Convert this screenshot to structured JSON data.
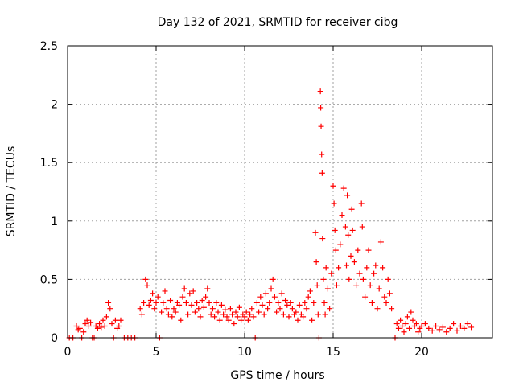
{
  "chart_data": {
    "type": "scatter",
    "title": "Day 132 of 2021, SRMTID for receiver cibg",
    "xlabel": "GPS time / hours",
    "ylabel": "SRMTID / TECUs",
    "xlim": [
      0,
      24
    ],
    "ylim": [
      0,
      2.5
    ],
    "xticks": [
      0,
      5,
      10,
      15,
      20
    ],
    "xtick_labels": [
      "0",
      "5",
      "10",
      "15",
      "20"
    ],
    "yticks": [
      0,
      0.5,
      1,
      1.5,
      2,
      2.5
    ],
    "ytick_labels": [
      "0",
      "0.5",
      "1",
      "1.5",
      "2",
      "2.5"
    ],
    "grid": true,
    "marker": "+",
    "series": [
      {
        "name": "SRMTID",
        "color": "#ff0000",
        "points": [
          [
            0.1,
            0.0
          ],
          [
            0.3,
            0.0
          ],
          [
            0.5,
            0.1
          ],
          [
            0.6,
            0.07
          ],
          [
            0.7,
            0.08
          ],
          [
            0.8,
            0.0
          ],
          [
            0.9,
            0.05
          ],
          [
            1.0,
            0.12
          ],
          [
            1.1,
            0.15
          ],
          [
            1.2,
            0.1
          ],
          [
            1.3,
            0.13
          ],
          [
            1.4,
            0.0
          ],
          [
            1.5,
            0.0
          ],
          [
            1.6,
            0.1
          ],
          [
            1.7,
            0.08
          ],
          [
            1.8,
            0.12
          ],
          [
            1.9,
            0.09
          ],
          [
            2.0,
            0.15
          ],
          [
            2.1,
            0.1
          ],
          [
            2.2,
            0.18
          ],
          [
            2.3,
            0.3
          ],
          [
            2.4,
            0.25
          ],
          [
            2.5,
            0.12
          ],
          [
            2.6,
            0.0
          ],
          [
            2.7,
            0.15
          ],
          [
            2.8,
            0.08
          ],
          [
            2.9,
            0.1
          ],
          [
            3.0,
            0.15
          ],
          [
            3.2,
            0.0
          ],
          [
            3.4,
            0.0
          ],
          [
            3.6,
            0.0
          ],
          [
            3.8,
            0.0
          ],
          [
            4.1,
            0.25
          ],
          [
            4.2,
            0.2
          ],
          [
            4.3,
            0.3
          ],
          [
            4.4,
            0.5
          ],
          [
            4.5,
            0.45
          ],
          [
            4.6,
            0.28
          ],
          [
            4.7,
            0.32
          ],
          [
            4.8,
            0.38
          ],
          [
            4.9,
            0.25
          ],
          [
            5.0,
            0.3
          ],
          [
            5.1,
            0.35
          ],
          [
            5.2,
            0.0
          ],
          [
            5.3,
            0.22
          ],
          [
            5.4,
            0.3
          ],
          [
            5.5,
            0.4
          ],
          [
            5.6,
            0.25
          ],
          [
            5.7,
            0.2
          ],
          [
            5.8,
            0.32
          ],
          [
            5.9,
            0.18
          ],
          [
            6.0,
            0.25
          ],
          [
            6.1,
            0.22
          ],
          [
            6.2,
            0.3
          ],
          [
            6.3,
            0.28
          ],
          [
            6.4,
            0.15
          ],
          [
            6.5,
            0.35
          ],
          [
            6.6,
            0.42
          ],
          [
            6.7,
            0.3
          ],
          [
            6.8,
            0.2
          ],
          [
            6.9,
            0.38
          ],
          [
            7.0,
            0.28
          ],
          [
            7.1,
            0.4
          ],
          [
            7.2,
            0.22
          ],
          [
            7.3,
            0.3
          ],
          [
            7.4,
            0.25
          ],
          [
            7.5,
            0.18
          ],
          [
            7.6,
            0.32
          ],
          [
            7.7,
            0.26
          ],
          [
            7.8,
            0.35
          ],
          [
            7.9,
            0.42
          ],
          [
            8.0,
            0.3
          ],
          [
            8.1,
            0.2
          ],
          [
            8.2,
            0.25
          ],
          [
            8.3,
            0.18
          ],
          [
            8.4,
            0.3
          ],
          [
            8.5,
            0.22
          ],
          [
            8.6,
            0.15
          ],
          [
            8.7,
            0.28
          ],
          [
            8.8,
            0.2
          ],
          [
            8.9,
            0.24
          ],
          [
            9.0,
            0.18
          ],
          [
            9.1,
            0.15
          ],
          [
            9.2,
            0.25
          ],
          [
            9.3,
            0.2
          ],
          [
            9.4,
            0.12
          ],
          [
            9.5,
            0.22
          ],
          [
            9.6,
            0.18
          ],
          [
            9.7,
            0.26
          ],
          [
            9.8,
            0.15
          ],
          [
            9.9,
            0.2
          ],
          [
            10.0,
            0.18
          ],
          [
            10.1,
            0.22
          ],
          [
            10.2,
            0.15
          ],
          [
            10.3,
            0.2
          ],
          [
            10.4,
            0.25
          ],
          [
            10.5,
            0.18
          ],
          [
            10.6,
            0.0
          ],
          [
            10.7,
            0.3
          ],
          [
            10.8,
            0.22
          ],
          [
            10.9,
            0.35
          ],
          [
            11.0,
            0.28
          ],
          [
            11.1,
            0.2
          ],
          [
            11.2,
            0.38
          ],
          [
            11.3,
            0.25
          ],
          [
            11.4,
            0.3
          ],
          [
            11.5,
            0.42
          ],
          [
            11.6,
            0.5
          ],
          [
            11.7,
            0.35
          ],
          [
            11.8,
            0.22
          ],
          [
            11.9,
            0.3
          ],
          [
            12.0,
            0.25
          ],
          [
            12.1,
            0.38
          ],
          [
            12.2,
            0.2
          ],
          [
            12.3,
            0.32
          ],
          [
            12.4,
            0.28
          ],
          [
            12.5,
            0.18
          ],
          [
            12.6,
            0.3
          ],
          [
            12.7,
            0.25
          ],
          [
            12.8,
            0.2
          ],
          [
            12.9,
            0.22
          ],
          [
            13.0,
            0.15
          ],
          [
            13.1,
            0.28
          ],
          [
            13.2,
            0.2
          ],
          [
            13.3,
            0.18
          ],
          [
            13.4,
            0.3
          ],
          [
            13.5,
            0.25
          ],
          [
            13.6,
            0.35
          ],
          [
            13.7,
            0.4
          ],
          [
            13.8,
            0.15
          ],
          [
            13.9,
            0.3
          ],
          [
            14.0,
            0.9
          ],
          [
            14.05,
            0.65
          ],
          [
            14.1,
            0.45
          ],
          [
            14.15,
            0.2
          ],
          [
            14.2,
            0.0
          ],
          [
            14.28,
            2.11
          ],
          [
            14.3,
            1.97
          ],
          [
            14.32,
            1.81
          ],
          [
            14.35,
            1.57
          ],
          [
            14.38,
            1.41
          ],
          [
            14.4,
            0.85
          ],
          [
            14.45,
            0.5
          ],
          [
            14.5,
            0.3
          ],
          [
            14.55,
            0.2
          ],
          [
            14.6,
            0.6
          ],
          [
            14.7,
            0.42
          ],
          [
            14.8,
            0.25
          ],
          [
            14.9,
            0.55
          ],
          [
            15.0,
            1.3
          ],
          [
            15.05,
            1.15
          ],
          [
            15.1,
            0.92
          ],
          [
            15.15,
            0.75
          ],
          [
            15.2,
            0.45
          ],
          [
            15.3,
            0.6
          ],
          [
            15.4,
            0.8
          ],
          [
            15.5,
            1.05
          ],
          [
            15.6,
            1.28
          ],
          [
            15.7,
            0.95
          ],
          [
            15.75,
            0.62
          ],
          [
            15.8,
            1.22
          ],
          [
            15.85,
            0.88
          ],
          [
            15.9,
            0.5
          ],
          [
            16.0,
            0.7
          ],
          [
            16.05,
            1.1
          ],
          [
            16.1,
            0.92
          ],
          [
            16.2,
            0.65
          ],
          [
            16.3,
            0.45
          ],
          [
            16.4,
            0.75
          ],
          [
            16.5,
            0.55
          ],
          [
            16.6,
            1.15
          ],
          [
            16.65,
            0.95
          ],
          [
            16.7,
            0.5
          ],
          [
            16.8,
            0.35
          ],
          [
            16.9,
            0.6
          ],
          [
            17.0,
            0.75
          ],
          [
            17.1,
            0.45
          ],
          [
            17.2,
            0.3
          ],
          [
            17.3,
            0.55
          ],
          [
            17.4,
            0.62
          ],
          [
            17.5,
            0.25
          ],
          [
            17.6,
            0.42
          ],
          [
            17.7,
            0.82
          ],
          [
            17.8,
            0.6
          ],
          [
            17.9,
            0.35
          ],
          [
            18.0,
            0.3
          ],
          [
            18.1,
            0.5
          ],
          [
            18.2,
            0.38
          ],
          [
            18.3,
            0.25
          ],
          [
            18.5,
            0.0
          ],
          [
            18.6,
            0.12
          ],
          [
            18.7,
            0.08
          ],
          [
            18.8,
            0.15
          ],
          [
            18.9,
            0.1
          ],
          [
            19.0,
            0.05
          ],
          [
            19.1,
            0.12
          ],
          [
            19.2,
            0.18
          ],
          [
            19.3,
            0.08
          ],
          [
            19.4,
            0.22
          ],
          [
            19.5,
            0.15
          ],
          [
            19.6,
            0.1
          ],
          [
            19.7,
            0.12
          ],
          [
            19.8,
            0.05
          ],
          [
            19.9,
            0.08
          ],
          [
            20.0,
            0.1
          ],
          [
            20.2,
            0.12
          ],
          [
            20.4,
            0.08
          ],
          [
            20.6,
            0.06
          ],
          [
            20.8,
            0.1
          ],
          [
            21.0,
            0.07
          ],
          [
            21.2,
            0.09
          ],
          [
            21.4,
            0.05
          ],
          [
            21.6,
            0.08
          ],
          [
            21.8,
            0.12
          ],
          [
            22.0,
            0.06
          ],
          [
            22.2,
            0.1
          ],
          [
            22.4,
            0.08
          ],
          [
            22.6,
            0.12
          ],
          [
            22.8,
            0.09
          ]
        ]
      }
    ]
  }
}
